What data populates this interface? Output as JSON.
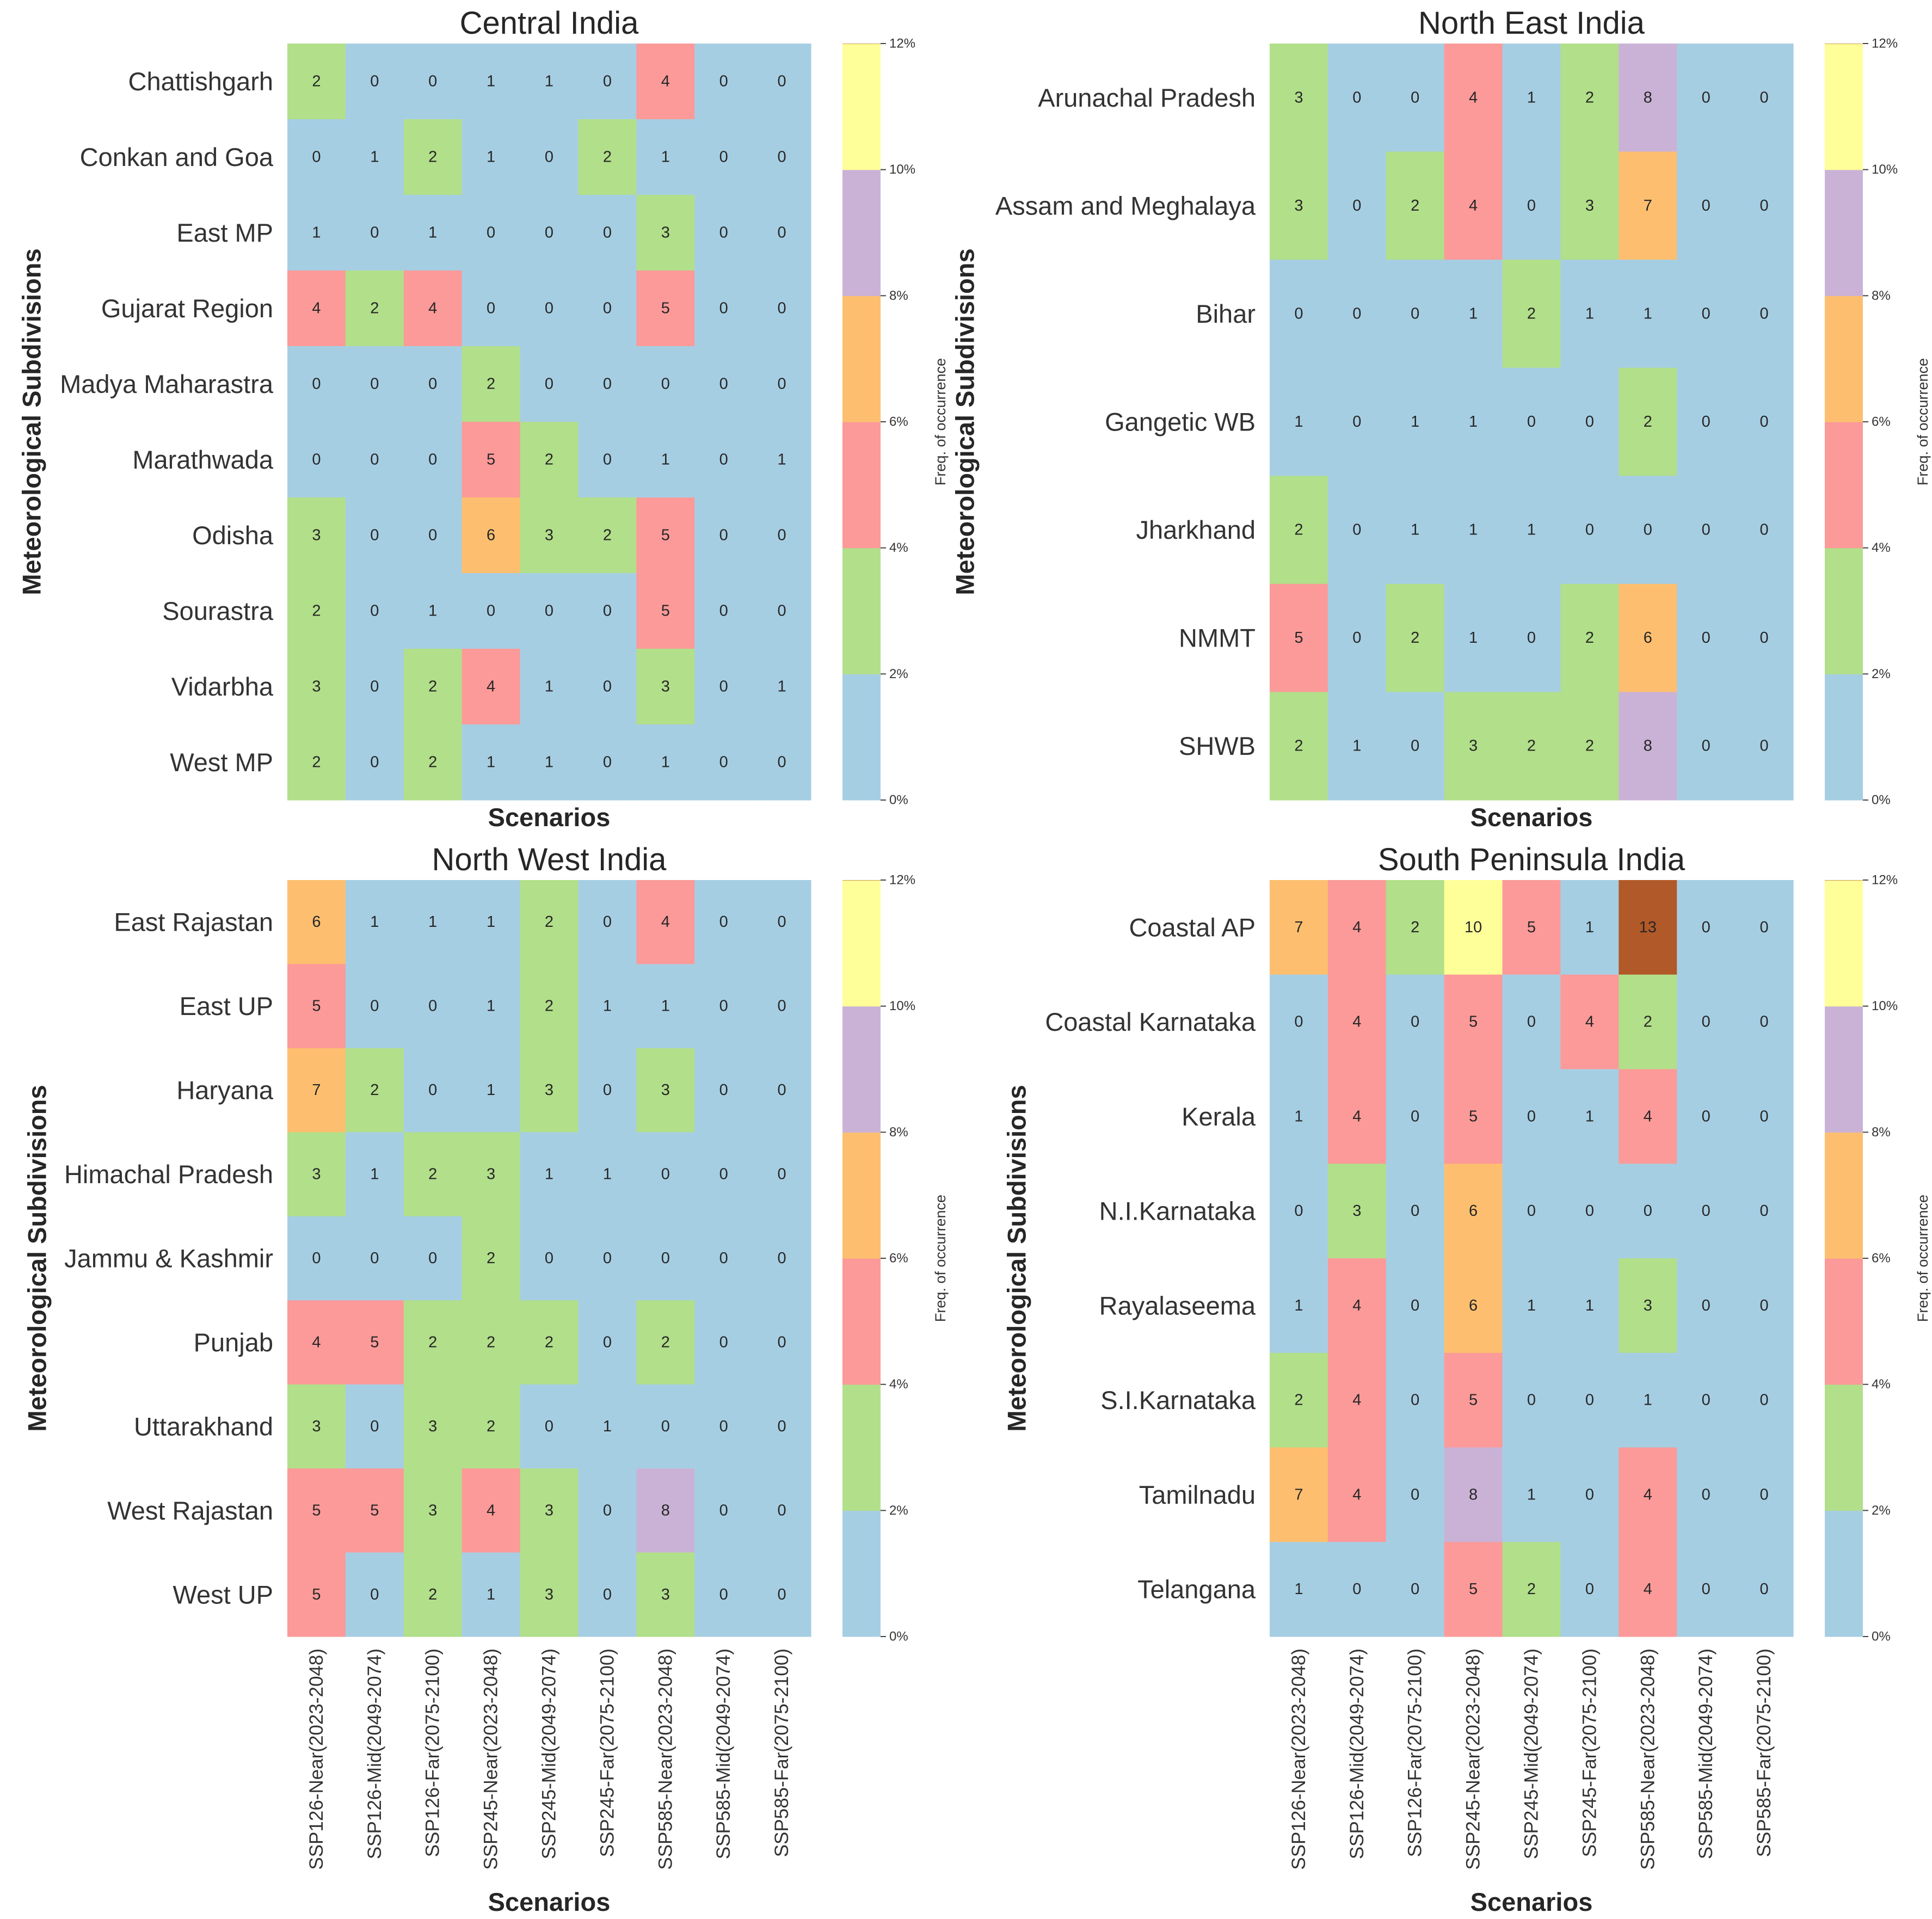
{
  "chart_data": [
    {
      "type": "heatmap",
      "title": "Central India",
      "xlabel": "Scenarios",
      "ylabel": "Meteorological Subdivisions",
      "rows": [
        "Chattishgarh",
        "Conkan and Goa",
        "East MP",
        "Gujarat Region",
        "Madya Maharastra",
        "Marathwada",
        "Odisha",
        "Sourastra",
        "Vidarbha",
        "West MP"
      ],
      "columns": [
        "SSP126-Near(2023-2048)",
        "SSP126-Mid(2049-2074)",
        "SSP126-Far(2075-2100)",
        "SSP245-Near(2023-2048)",
        "SSP245-Mid(2049-2074)",
        "SSP245-Far(2075-2100)",
        "SSP585-Near(2023-2048)",
        "SSP585-Mid(2049-2074)",
        "SSP585-Far(2075-2100)"
      ],
      "show_column_labels": false,
      "values": [
        [
          2,
          0,
          0,
          1,
          1,
          0,
          4,
          0,
          0
        ],
        [
          0,
          1,
          2,
          1,
          0,
          2,
          1,
          0,
          0
        ],
        [
          1,
          0,
          1,
          0,
          0,
          0,
          3,
          0,
          0
        ],
        [
          4,
          2,
          4,
          0,
          0,
          0,
          5,
          0,
          0
        ],
        [
          0,
          0,
          0,
          2,
          0,
          0,
          0,
          0,
          0
        ],
        [
          0,
          0,
          0,
          5,
          2,
          0,
          1,
          0,
          1
        ],
        [
          3,
          0,
          0,
          6,
          3,
          2,
          5,
          0,
          0
        ],
        [
          2,
          0,
          1,
          0,
          0,
          0,
          5,
          0,
          0
        ],
        [
          3,
          0,
          2,
          4,
          1,
          0,
          3,
          0,
          1
        ],
        [
          2,
          0,
          2,
          1,
          1,
          0,
          1,
          0,
          0
        ]
      ],
      "colorbar": {
        "label": "Freq. of occurrence",
        "ticks": [
          "0%",
          "2%",
          "4%",
          "6%",
          "8%",
          "10%",
          "12%"
        ]
      }
    },
    {
      "type": "heatmap",
      "title": "North East India",
      "xlabel": "Scenarios",
      "ylabel": "Meteorological Subdivisions",
      "rows": [
        "Arunachal Pradesh",
        "Assam and Meghalaya",
        "Bihar",
        "Gangetic WB",
        "Jharkhand",
        "NMMT",
        "SHWB"
      ],
      "columns": [
        "SSP126-Near(2023-2048)",
        "SSP126-Mid(2049-2074)",
        "SSP126-Far(2075-2100)",
        "SSP245-Near(2023-2048)",
        "SSP245-Mid(2049-2074)",
        "SSP245-Far(2075-2100)",
        "SSP585-Near(2023-2048)",
        "SSP585-Mid(2049-2074)",
        "SSP585-Far(2075-2100)"
      ],
      "show_column_labels": false,
      "values": [
        [
          3,
          0,
          0,
          4,
          1,
          2,
          8,
          0,
          0
        ],
        [
          3,
          0,
          2,
          4,
          0,
          3,
          7,
          0,
          0
        ],
        [
          0,
          0,
          0,
          1,
          2,
          1,
          1,
          0,
          0
        ],
        [
          1,
          0,
          1,
          1,
          0,
          0,
          2,
          0,
          0
        ],
        [
          2,
          0,
          1,
          1,
          1,
          0,
          0,
          0,
          0
        ],
        [
          5,
          0,
          2,
          1,
          0,
          2,
          6,
          0,
          0
        ],
        [
          2,
          1,
          0,
          3,
          2,
          2,
          8,
          0,
          0
        ]
      ],
      "colorbar": {
        "label": "Freq. of occurrence",
        "ticks": [
          "0%",
          "2%",
          "4%",
          "6%",
          "8%",
          "10%",
          "12%"
        ]
      }
    },
    {
      "type": "heatmap",
      "title": "North West India",
      "xlabel": "Scenarios",
      "ylabel": "Meteorological Subdivisions",
      "rows": [
        "East Rajastan",
        "East UP",
        "Haryana",
        "Himachal Pradesh",
        "Jammu & Kashmir",
        "Punjab",
        "Uttarakhand",
        "West Rajastan",
        "West UP"
      ],
      "columns": [
        "SSP126-Near(2023-2048)",
        "SSP126-Mid(2049-2074)",
        "SSP126-Far(2075-2100)",
        "SSP245-Near(2023-2048)",
        "SSP245-Mid(2049-2074)",
        "SSP245-Far(2075-2100)",
        "SSP585-Near(2023-2048)",
        "SSP585-Mid(2049-2074)",
        "SSP585-Far(2075-2100)"
      ],
      "show_column_labels": true,
      "values": [
        [
          6,
          1,
          1,
          1,
          2,
          0,
          4,
          0,
          0
        ],
        [
          5,
          0,
          0,
          1,
          2,
          1,
          1,
          0,
          0
        ],
        [
          7,
          2,
          0,
          1,
          3,
          0,
          3,
          0,
          0
        ],
        [
          3,
          1,
          2,
          3,
          1,
          1,
          0,
          0,
          0
        ],
        [
          0,
          0,
          0,
          2,
          0,
          0,
          0,
          0,
          0
        ],
        [
          4,
          5,
          2,
          2,
          2,
          0,
          2,
          0,
          0
        ],
        [
          3,
          0,
          3,
          2,
          0,
          1,
          0,
          0,
          0
        ],
        [
          5,
          5,
          3,
          4,
          3,
          0,
          8,
          0,
          0
        ],
        [
          5,
          0,
          2,
          1,
          3,
          0,
          3,
          0,
          0
        ]
      ],
      "colorbar": {
        "label": "Freq. of occurrence",
        "ticks": [
          "0%",
          "2%",
          "4%",
          "6%",
          "8%",
          "10%",
          "12%"
        ]
      }
    },
    {
      "type": "heatmap",
      "title": "South Peninsula India",
      "xlabel": "Scenarios",
      "ylabel": "Meteorological Subdivisions",
      "rows": [
        "Coastal AP",
        "Coastal Karnataka",
        "Kerala",
        "N.I.Karnataka",
        "Rayalaseema",
        "S.I.Karnataka",
        "Tamilnadu",
        "Telangana"
      ],
      "columns": [
        "SSP126-Near(2023-2048)",
        "SSP126-Mid(2049-2074)",
        "SSP126-Far(2075-2100)",
        "SSP245-Near(2023-2048)",
        "SSP245-Mid(2049-2074)",
        "SSP245-Far(2075-2100)",
        "SSP585-Near(2023-2048)",
        "SSP585-Mid(2049-2074)",
        "SSP585-Far(2075-2100)"
      ],
      "show_column_labels": true,
      "values": [
        [
          7,
          4,
          2,
          10,
          5,
          1,
          13,
          0,
          0
        ],
        [
          0,
          4,
          0,
          5,
          0,
          4,
          2,
          0,
          0
        ],
        [
          1,
          4,
          0,
          5,
          0,
          1,
          4,
          0,
          0
        ],
        [
          0,
          3,
          0,
          6,
          0,
          0,
          0,
          0,
          0
        ],
        [
          1,
          4,
          0,
          6,
          1,
          1,
          3,
          0,
          0
        ],
        [
          2,
          4,
          0,
          5,
          0,
          0,
          1,
          0,
          0
        ],
        [
          7,
          4,
          0,
          8,
          1,
          0,
          4,
          0,
          0
        ],
        [
          1,
          0,
          0,
          5,
          2,
          0,
          4,
          0,
          0
        ]
      ],
      "colorbar": {
        "label": "Freq. of occurrence",
        "ticks": [
          "0%",
          "2%",
          "4%",
          "6%",
          "8%",
          "10%",
          "12%"
        ]
      }
    }
  ],
  "colors": {
    "bins": [
      "#a6cee3",
      "#b2df8a",
      "#fb9a99",
      "#fdbf6f",
      "#cab2d6",
      "#ffff99",
      "#b15928"
    ],
    "text": "#262626",
    "label_text": "#333333"
  }
}
